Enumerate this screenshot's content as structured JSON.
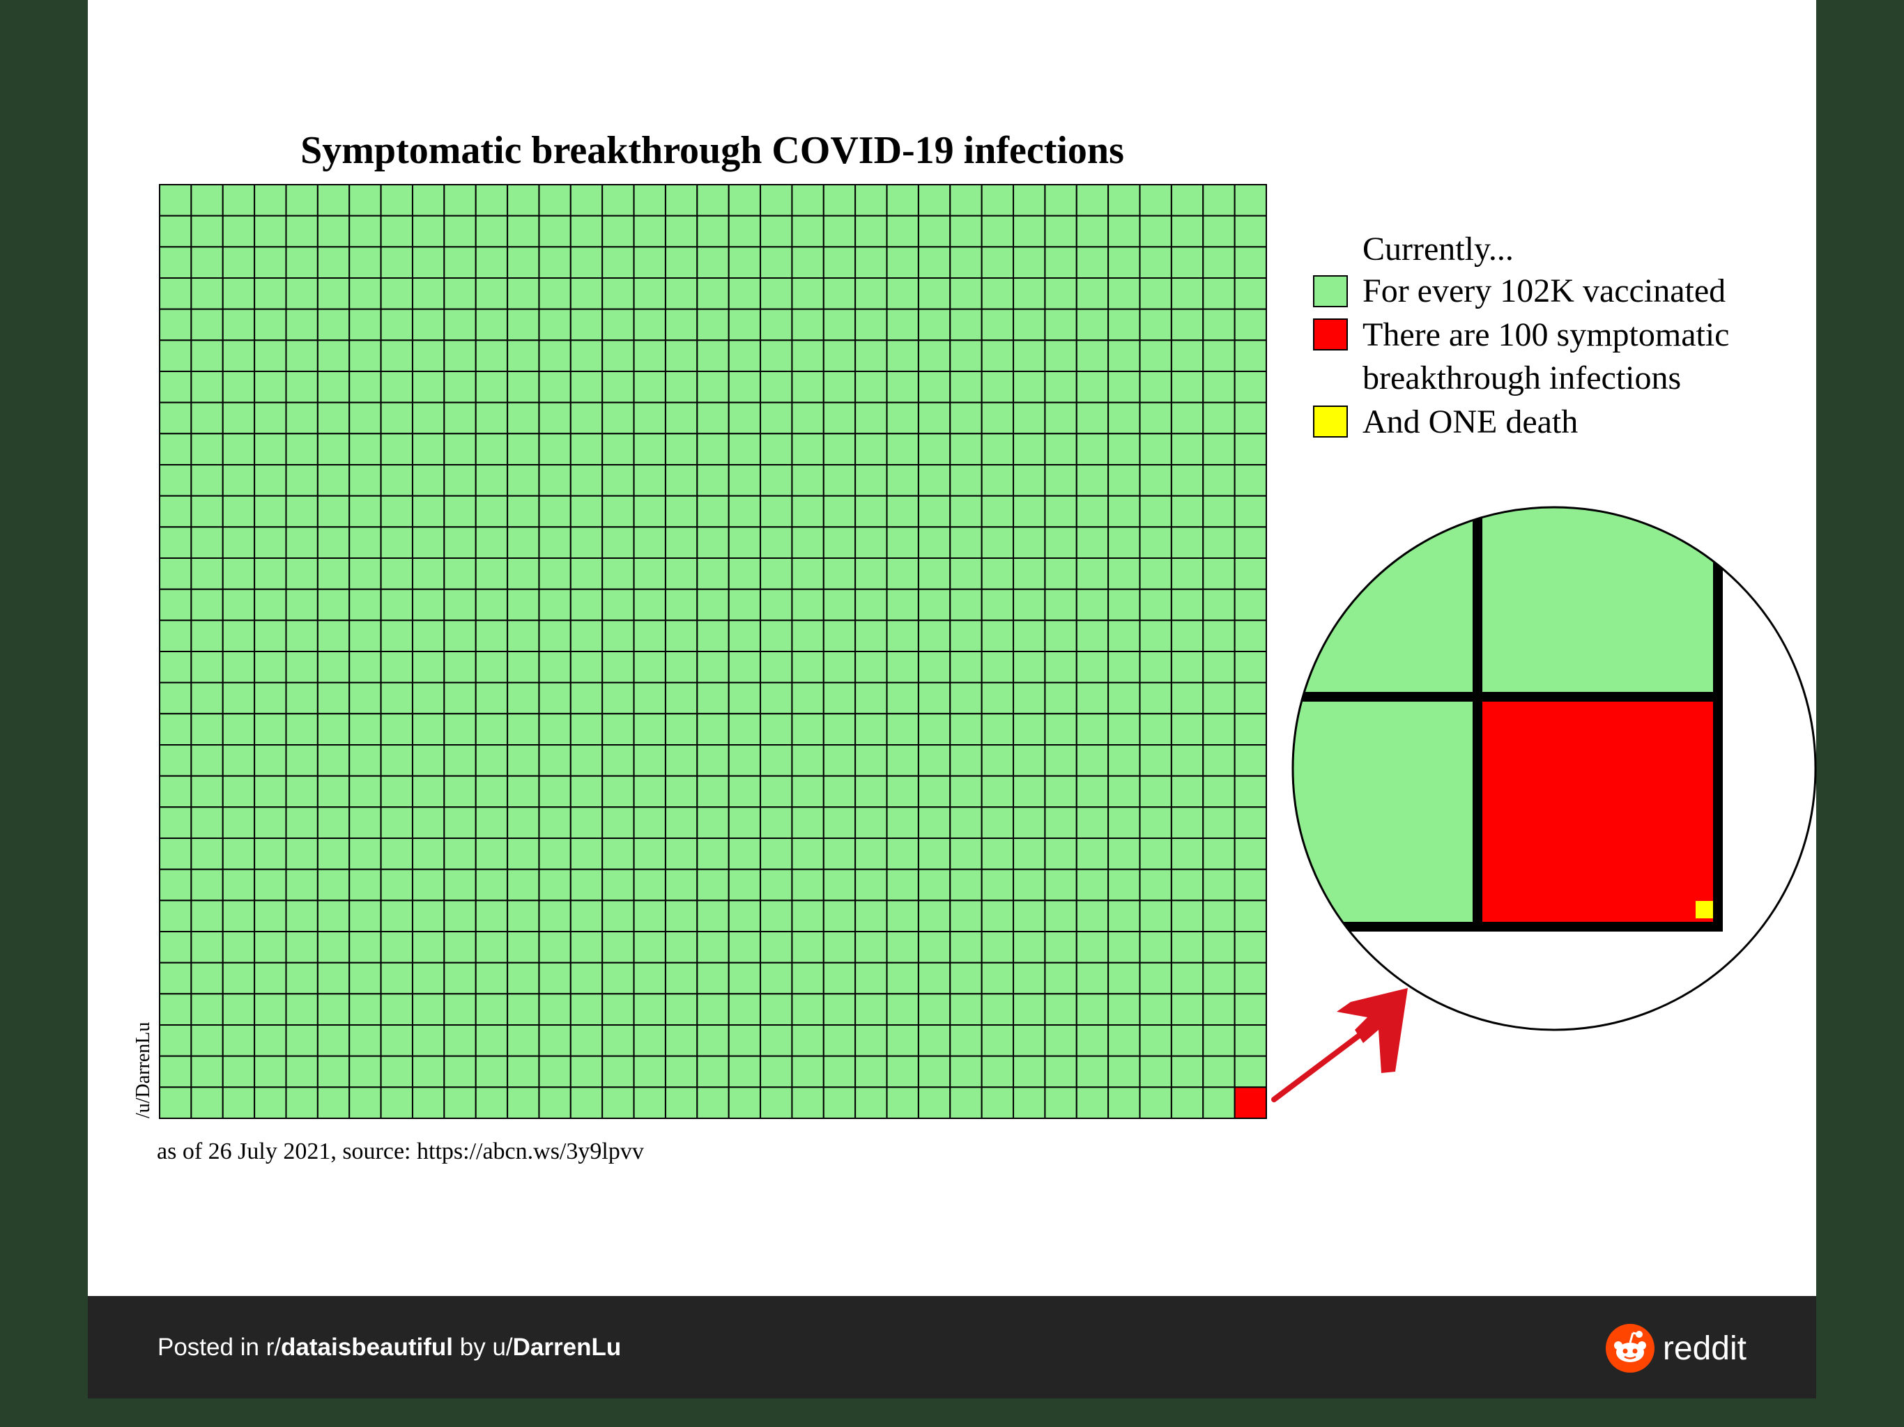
{
  "chart_data": {
    "type": "waffle",
    "title": "Symptomatic breakthrough COVID-19 infections",
    "grid": {
      "columns": 35,
      "rows": 30
    },
    "legend": {
      "heading": "Currently...",
      "items": [
        {
          "label": "For every 102K vaccinated",
          "color": "#90ee90"
        },
        {
          "label": "There are 100 symptomatic",
          "label2": "breakthrough infections",
          "color": "#ff0000"
        },
        {
          "label": "And ONE death",
          "color": "#ffff00"
        }
      ]
    },
    "values": {
      "vaccinated": 102000,
      "symptomatic_breakthrough": 100,
      "deaths": 1
    },
    "highlighted_cell": {
      "row": 30,
      "column": 35,
      "color": "#ff0000"
    },
    "source_note": "as of 26 July 2021, source: https://abcn.ws/3y9lpvv",
    "credit": "/u/DarrenLu",
    "colors": {
      "cell": "#90ee90",
      "infection": "#ff0000",
      "death": "#ffff00",
      "arrow": "#d9141e"
    }
  },
  "footer": {
    "prefix": "Posted in ",
    "subreddit_prefix": "r/",
    "subreddit": "dataisbeautiful",
    "by": " by ",
    "user_prefix": "u/",
    "user": "DarrenLu",
    "brand": "reddit",
    "brand_icon": "reddit-alien-icon",
    "colors": {
      "background": "#242424",
      "brand_accent": "#ff4500"
    }
  }
}
